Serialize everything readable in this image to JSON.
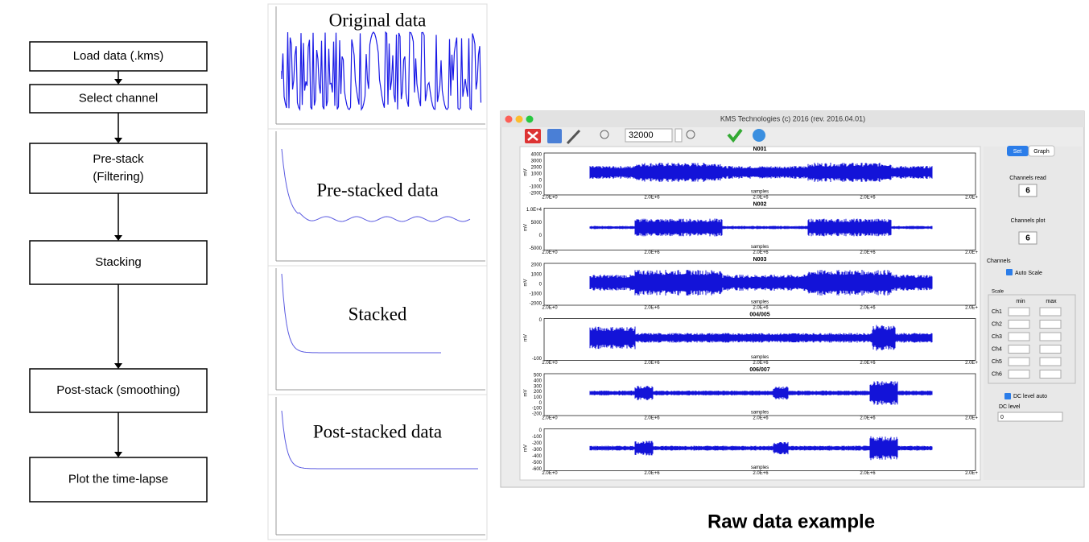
{
  "flowchart": {
    "steps": [
      [
        "Load data (.kms)"
      ],
      [
        "Select channel"
      ],
      [
        "Pre-stack",
        "(Filtering)"
      ],
      [
        "Stacking"
      ],
      [
        "Post-stack (smoothing)"
      ],
      [
        "Plot the time-lapse"
      ]
    ]
  },
  "panels": [
    "Original data",
    "Pre-stacked data",
    "Stacked",
    "Post-stacked data"
  ],
  "app": {
    "window_title": "KMS Technologies (c) 2016 (rev. 2016.04.01)",
    "zoom_value": "32000",
    "plots": [
      {
        "title": "N001",
        "ylabel": "mV",
        "yticks": [
          4000,
          3000,
          2000,
          1000,
          0,
          -1000,
          -2000
        ]
      },
      {
        "title": "N002",
        "ylabel": "mV",
        "yticks": [
          "1.0E+4",
          5000,
          0,
          -5000
        ]
      },
      {
        "title": "N003",
        "ylabel": "mV",
        "yticks": [
          2000,
          1000,
          0,
          -1000,
          -2000
        ]
      },
      {
        "title": "004/005",
        "ylabel": "mV",
        "yticks": [
          0,
          -100
        ]
      },
      {
        "title": "006/007",
        "ylabel": "mV",
        "yticks": [
          500,
          400,
          300,
          200,
          100,
          0,
          -100,
          -200
        ]
      },
      {
        "title": "",
        "ylabel": "mV",
        "yticks": [
          0,
          -100,
          -200,
          -300,
          -400,
          -500,
          -600
        ]
      }
    ],
    "xlabel": "samples",
    "xticks": [
      "2.0E+0",
      "2.0E+6",
      "2.0E+6",
      "2.0E+6",
      "2.0E+"
    ],
    "side": {
      "tabs": [
        "Set",
        "Graph"
      ],
      "channels_read_label": "Channels read",
      "channels_read": "6",
      "channels_plot_label": "Channels plot",
      "channels_plot": "6",
      "channels_label": "Channels",
      "auto_scale": "Auto Scale",
      "scale_label": "Scale",
      "min_label": "min",
      "max_label": "max",
      "channels": [
        "Ch1",
        "Ch2",
        "Ch3",
        "Ch4",
        "Ch5",
        "Ch6"
      ],
      "dc_auto": "DC level auto",
      "dc_label": "DC level",
      "dc_value": "0"
    }
  },
  "caption": "Raw data example"
}
